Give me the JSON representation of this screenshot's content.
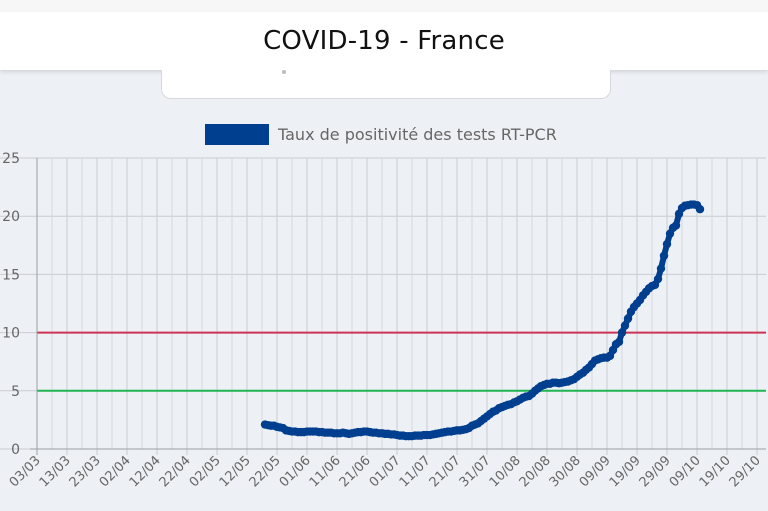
{
  "header": {
    "title": "COVID-19 - France"
  },
  "chart_data": {
    "type": "line",
    "title": "",
    "xlabel": "",
    "ylabel": "",
    "ylim": [
      0,
      25
    ],
    "y_ticks": [
      0,
      5,
      10,
      15,
      20,
      25
    ],
    "x_tick_labels": [
      "03/03",
      "13/03",
      "23/03",
      "02/04",
      "12/04",
      "22/04",
      "02/05",
      "12/05",
      "22/05",
      "01/06",
      "11/06",
      "21/06",
      "01/07",
      "11/07",
      "21/07",
      "31/07",
      "10/08",
      "20/08",
      "30/08",
      "09/09",
      "19/09",
      "29/09",
      "09/10",
      "19/10",
      "29/10"
    ],
    "legend": {
      "position": "top",
      "entries": [
        "Taux de positivité des tests RT-PCR"
      ]
    },
    "grid": true,
    "series": [
      {
        "name": "Taux de positivité des tests RT-PCR",
        "color": "#003f8f",
        "start_day_index": 76,
        "values": [
          2.1,
          2.05,
          2.0,
          2.0,
          1.9,
          1.85,
          1.8,
          1.6,
          1.55,
          1.5,
          1.5,
          1.45,
          1.45,
          1.45,
          1.5,
          1.5,
          1.5,
          1.5,
          1.45,
          1.45,
          1.4,
          1.4,
          1.4,
          1.35,
          1.35,
          1.35,
          1.4,
          1.35,
          1.3,
          1.35,
          1.4,
          1.45,
          1.45,
          1.5,
          1.5,
          1.45,
          1.4,
          1.4,
          1.35,
          1.35,
          1.3,
          1.3,
          1.25,
          1.25,
          1.2,
          1.15,
          1.15,
          1.1,
          1.1,
          1.1,
          1.15,
          1.15,
          1.15,
          1.2,
          1.2,
          1.2,
          1.25,
          1.3,
          1.35,
          1.4,
          1.45,
          1.5,
          1.5,
          1.55,
          1.6,
          1.6,
          1.65,
          1.7,
          1.8,
          2.0,
          2.1,
          2.2,
          2.4,
          2.6,
          2.8,
          3.0,
          3.2,
          3.3,
          3.5,
          3.6,
          3.7,
          3.8,
          3.85,
          4.0,
          4.1,
          4.25,
          4.4,
          4.5,
          4.55,
          4.75,
          5.0,
          5.2,
          5.4,
          5.5,
          5.6,
          5.6,
          5.7,
          5.7,
          5.65,
          5.7,
          5.75,
          5.8,
          5.9,
          6.0,
          6.2,
          6.4,
          6.55,
          6.8,
          7.0,
          7.3,
          7.6,
          7.7,
          7.8,
          7.85,
          7.85,
          8.0,
          8.5,
          9.0,
          9.2,
          10.0,
          10.6,
          11.2,
          11.8,
          12.2,
          12.5,
          12.8,
          13.2,
          13.5,
          13.8,
          14.0,
          14.1,
          14.6,
          15.5,
          16.6,
          17.6,
          18.5,
          19.0,
          19.2,
          20.2,
          20.7,
          20.9,
          20.95,
          21.0,
          21.0,
          20.95,
          20.6
        ]
      }
    ],
    "reference_lines": [
      {
        "value": 10,
        "color": "#cc3355"
      },
      {
        "value": 5,
        "color": "#1fb552"
      }
    ]
  }
}
